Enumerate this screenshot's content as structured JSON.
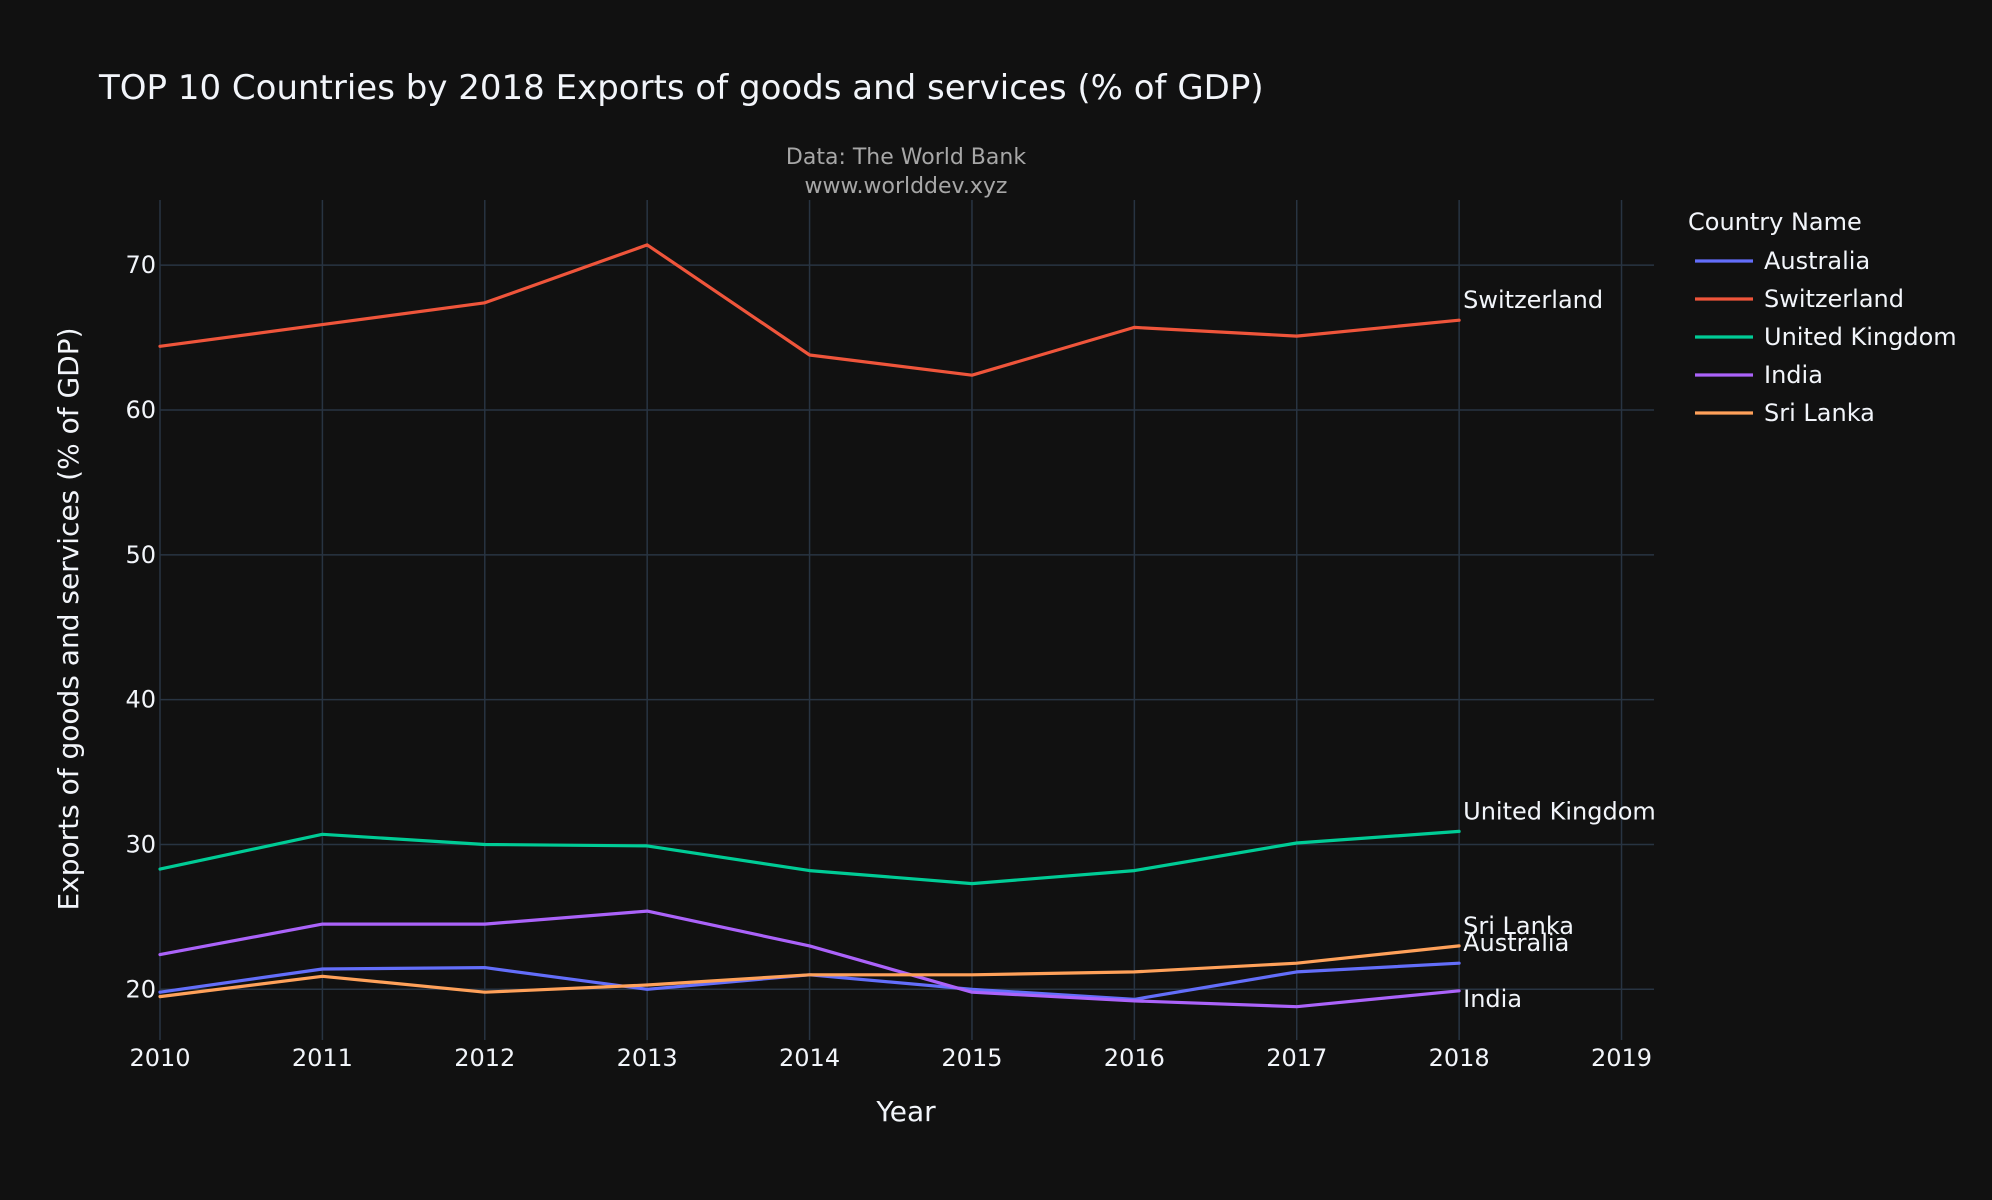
{
  "chart_data": {
    "type": "line",
    "title": "TOP 10 Countries by 2018 Exports of goods and services (% of GDP)",
    "subtitle_lines": [
      "Data: The World Bank",
      "www.worlddev.xyz"
    ],
    "xlabel": "Year",
    "ylabel": "Exports of goods and services (% of GDP)",
    "legend_title": "Country Name",
    "legend_position": "top-right",
    "grid": true,
    "xlim": [
      2010,
      2019.2
    ],
    "ylim": [
      16.5,
      74.5
    ],
    "xticks": [
      2010,
      2011,
      2012,
      2013,
      2014,
      2015,
      2016,
      2017,
      2018,
      2019
    ],
    "yticks": [
      20,
      30,
      40,
      50,
      60,
      70
    ],
    "x": [
      2010,
      2011,
      2012,
      2013,
      2014,
      2015,
      2016,
      2017,
      2018
    ],
    "series": [
      {
        "name": "Australia",
        "color": "#636efa",
        "end_label": "Australia",
        "values": [
          19.8,
          21.4,
          21.5,
          20.0,
          21.0,
          20.0,
          19.3,
          21.2,
          21.8
        ]
      },
      {
        "name": "Switzerland",
        "color": "#ef553b",
        "end_label": "Switzerland",
        "values": [
          64.4,
          65.9,
          67.4,
          71.4,
          63.8,
          62.4,
          65.7,
          65.1,
          66.2
        ]
      },
      {
        "name": "United Kingdom",
        "color": "#00cc96",
        "end_label": "United Kingdom",
        "values": [
          28.3,
          30.7,
          30.0,
          29.9,
          28.2,
          27.3,
          28.2,
          30.1,
          30.9
        ]
      },
      {
        "name": "India",
        "color": "#ab63fa",
        "end_label": "India",
        "values": [
          22.4,
          24.5,
          24.5,
          25.4,
          23.0,
          19.8,
          19.2,
          18.8,
          19.9
        ]
      },
      {
        "name": "Sri Lanka",
        "color": "#ffa15a",
        "end_label": "Sri Lanka",
        "values": [
          19.5,
          20.9,
          19.8,
          20.3,
          21.0,
          21.0,
          21.2,
          21.8,
          23.0
        ]
      }
    ]
  }
}
